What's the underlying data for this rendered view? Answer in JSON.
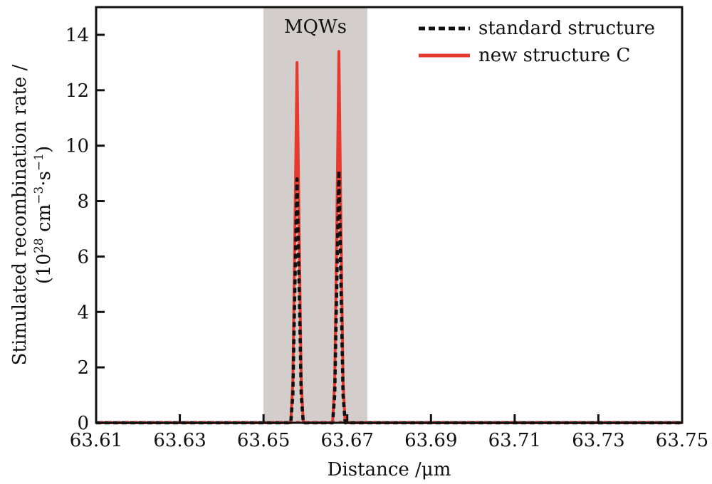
{
  "chart_data": {
    "type": "line",
    "title": "",
    "xlabel": "Distance /μm",
    "ylabel_line1": "Stimulated recombination rate /",
    "ylabel_line2_prefix": "(10",
    "ylabel_line2_exp1": "28",
    "ylabel_line2_mid": " cm",
    "ylabel_line2_exp2": "−3",
    "ylabel_line2_mid2": "·s",
    "ylabel_line2_exp3": "−1",
    "ylabel_line2_suffix": ")",
    "xlim": [
      63.61,
      63.75
    ],
    "ylim": [
      0,
      15
    ],
    "x_ticks": [
      63.61,
      63.63,
      63.65,
      63.67,
      63.69,
      63.71,
      63.73,
      63.75
    ],
    "x_tick_labels": [
      "63.61",
      "63.63",
      "63.65",
      "63.67",
      "63.69",
      "63.71",
      "63.73",
      "63.75"
    ],
    "y_ticks": [
      0,
      2,
      4,
      6,
      8,
      10,
      12,
      14
    ],
    "y_tick_labels": [
      "0",
      "2",
      "4",
      "6",
      "8",
      "10",
      "12",
      "14"
    ],
    "grid": false,
    "legend_position": "top-right",
    "shaded_region": {
      "label": "MQWs",
      "x_start": 63.65,
      "x_end": 63.6748,
      "color": "#d3cdcb"
    },
    "series": [
      {
        "name": "standard structure",
        "color": "#111111",
        "style": "dashed",
        "x": [
          63.61,
          63.6565,
          63.657,
          63.6575,
          63.658,
          63.6585,
          63.659,
          63.6595,
          63.6665,
          63.667,
          63.6675,
          63.668,
          63.6685,
          63.669,
          63.6695,
          63.75
        ],
        "y": [
          0,
          0,
          1.0,
          5.0,
          8.8,
          5.0,
          1.0,
          0,
          0,
          1.0,
          5.0,
          9.1,
          5.0,
          1.0,
          0,
          0
        ]
      },
      {
        "name": "new structure C",
        "color": "#e8392f",
        "style": "solid",
        "x": [
          63.61,
          63.6565,
          63.657,
          63.6575,
          63.658,
          63.6585,
          63.659,
          63.6595,
          63.6665,
          63.667,
          63.6675,
          63.668,
          63.6685,
          63.669,
          63.6695,
          63.75
        ],
        "y": [
          0,
          0,
          1.5,
          7.0,
          13.0,
          7.0,
          1.5,
          0,
          0,
          1.5,
          7.0,
          13.4,
          7.0,
          1.5,
          0,
          0
        ]
      }
    ]
  }
}
